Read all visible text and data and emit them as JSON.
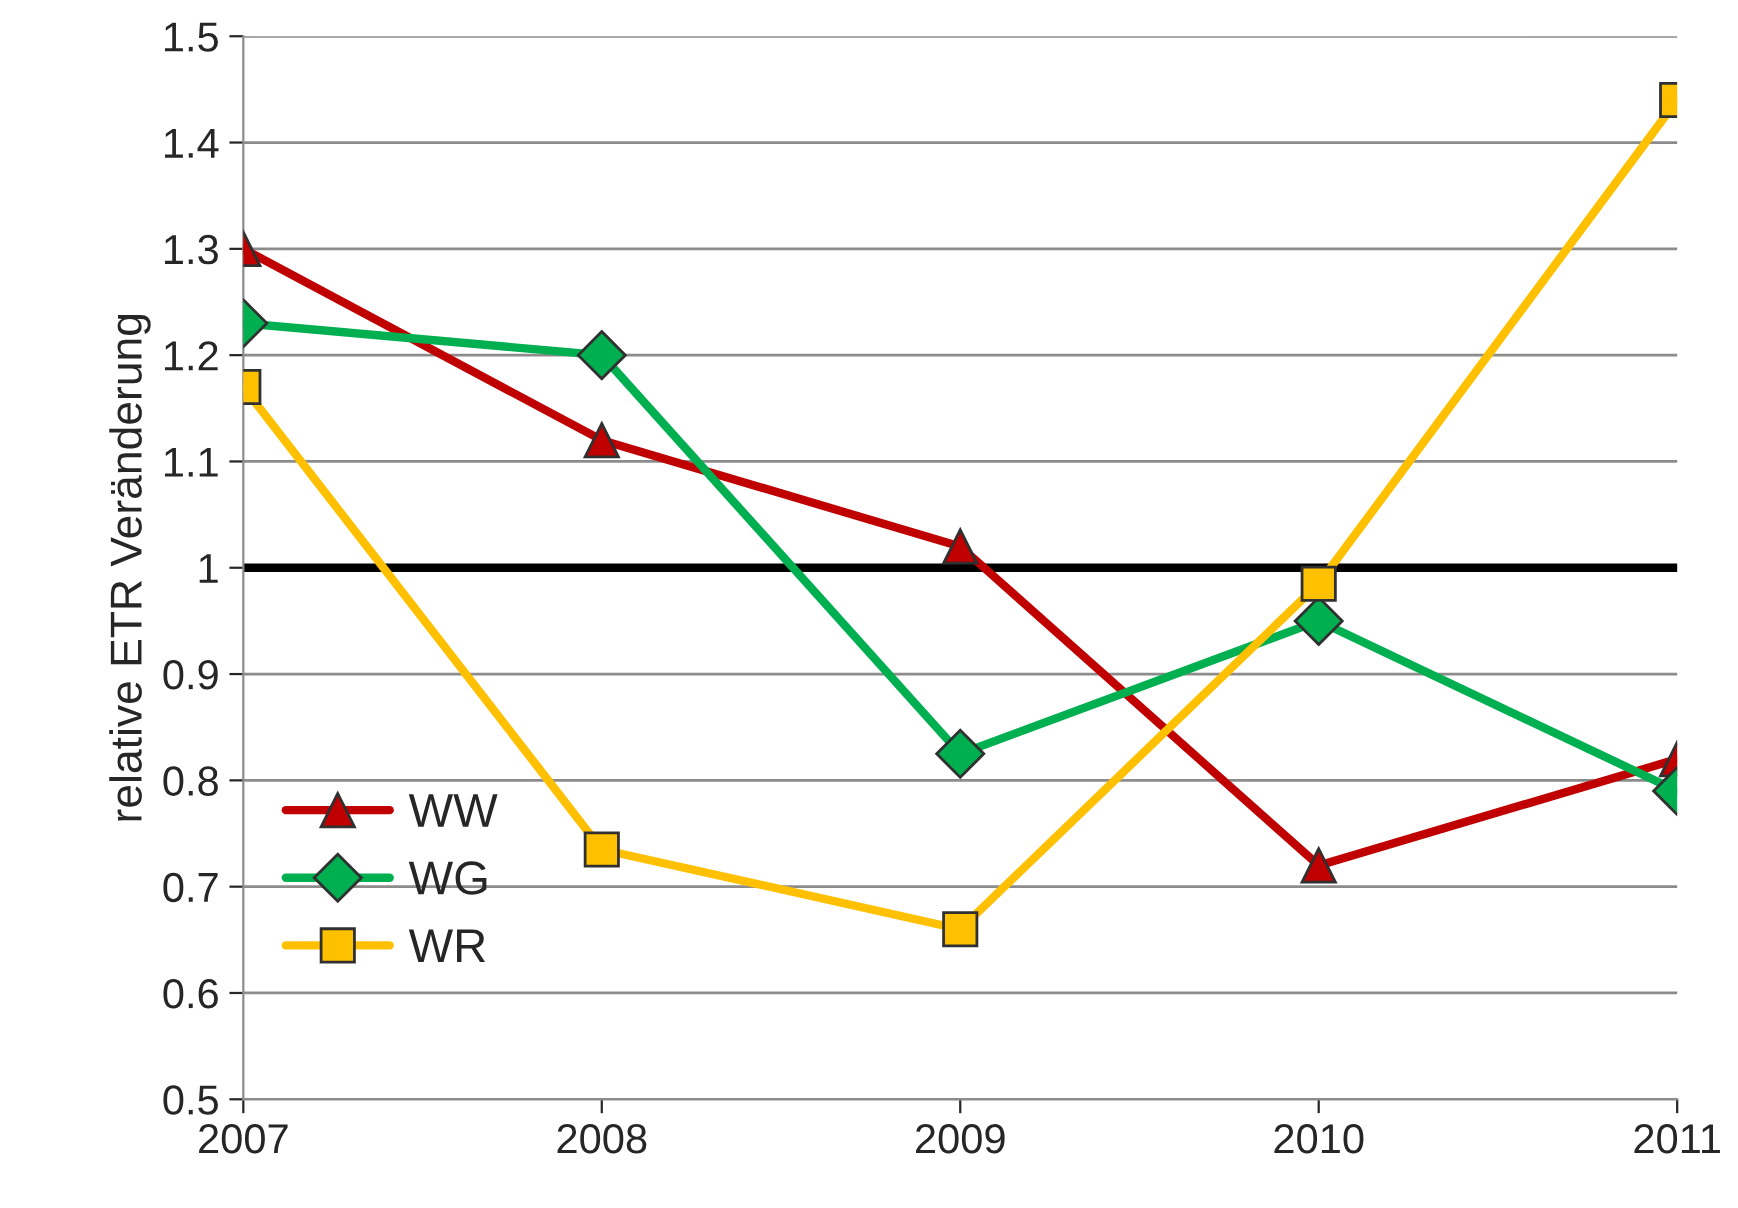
{
  "chart_data": {
    "type": "line",
    "ylabel": "relative ETR Veränderung",
    "categories": [
      "2007",
      "2008",
      "2009",
      "2010",
      "2011"
    ],
    "series": [
      {
        "name": "WW",
        "color": "#c00000",
        "marker": "triangle",
        "values": [
          1.3,
          1.12,
          1.02,
          0.72,
          0.82
        ]
      },
      {
        "name": "WG",
        "color": "#00b050",
        "marker": "diamond",
        "values": [
          1.23,
          1.2,
          0.825,
          0.95,
          0.79
        ]
      },
      {
        "name": "WR",
        "color": "#ffc000",
        "marker": "square",
        "values": [
          1.17,
          0.735,
          0.66,
          0.985,
          1.44
        ]
      }
    ],
    "ylim": [
      0.5,
      1.5
    ],
    "yticks": [
      0.5,
      0.6,
      0.7,
      0.8,
      0.9,
      1,
      1.1,
      1.2,
      1.3,
      1.4,
      1.5
    ],
    "ref_lines": [
      {
        "axis": "y",
        "value": 1,
        "color": "#000000"
      }
    ],
    "grid": "y",
    "legend": "bottom left",
    "line_style": "solid"
  }
}
